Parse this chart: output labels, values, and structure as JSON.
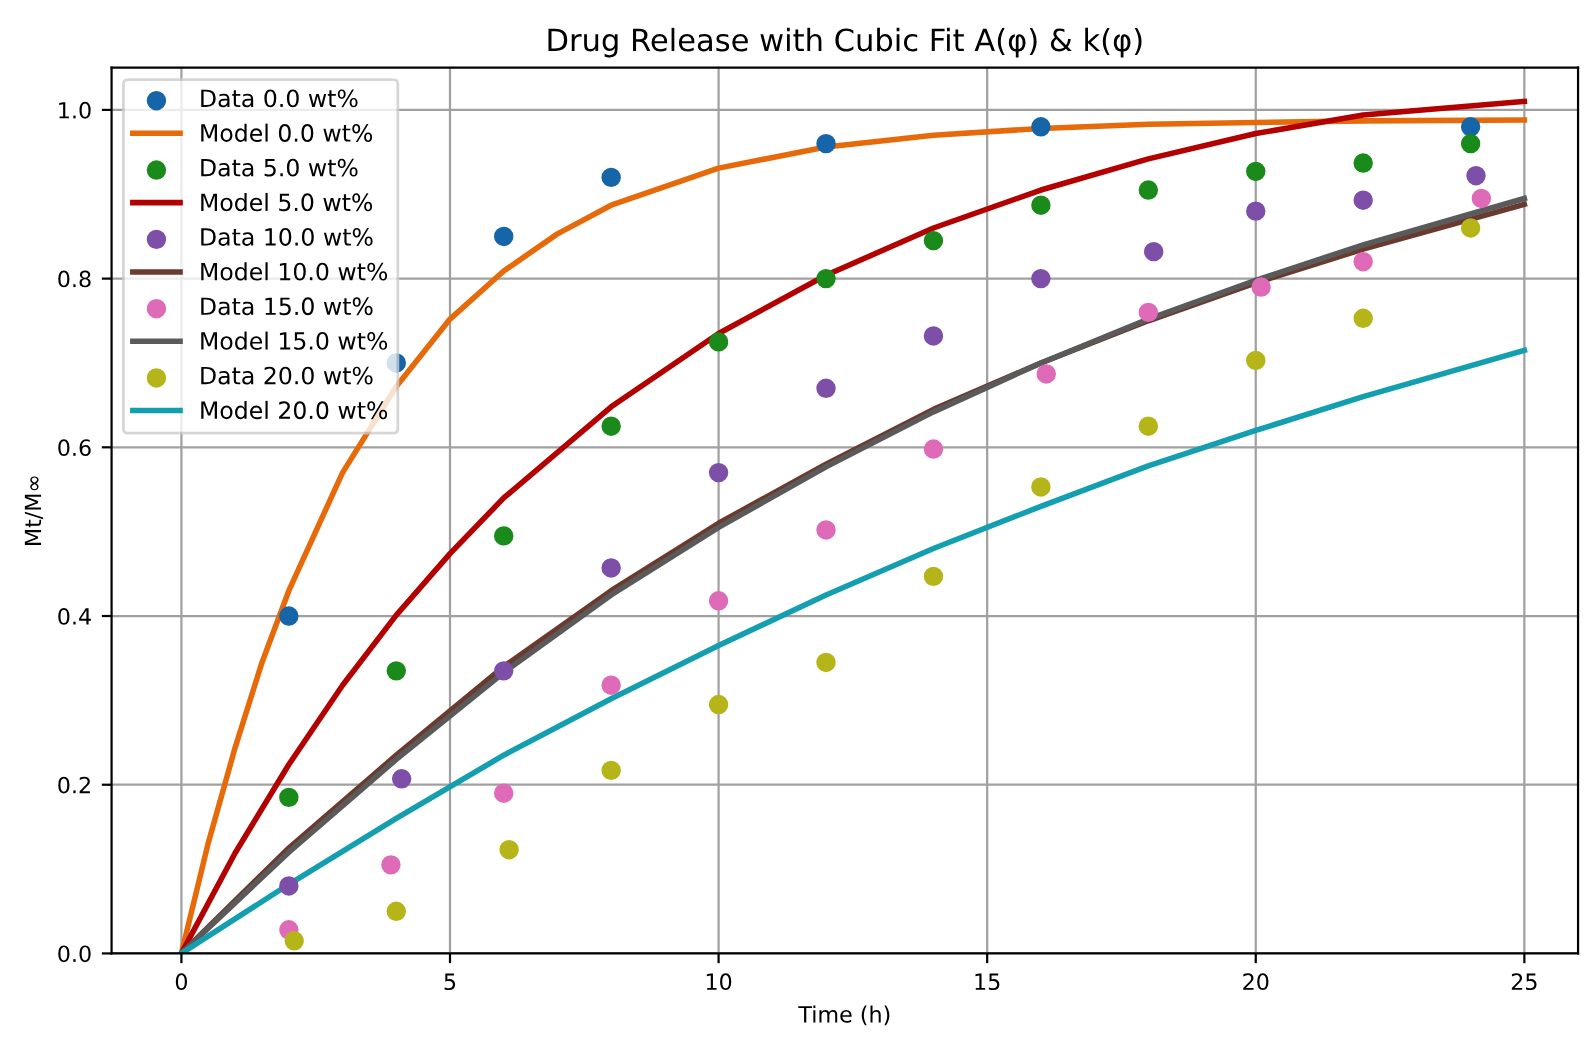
{
  "chart_data": {
    "type": "line",
    "title": "Drug Release with Cubic Fit A(φ) & k(φ)",
    "xlabel": "Time (h)",
    "ylabel": "Mt/M∞",
    "xlim": [
      -1.3,
      26.0
    ],
    "ylim": [
      0,
      1.05
    ],
    "xticks": [
      0,
      5,
      10,
      15,
      20,
      25
    ],
    "yticks": [
      {
        "value": 0,
        "label": "0.0"
      },
      {
        "value": 0.2,
        "label": "0.2"
      },
      {
        "value": 0.4,
        "label": "0.4"
      },
      {
        "value": 0.6,
        "label": "0.6"
      },
      {
        "value": 0.8,
        "label": "0.8"
      },
      {
        "value": 1.0,
        "label": "1.0"
      }
    ],
    "grid": true,
    "legend": "top left",
    "series": [
      {
        "name": "Data 0.0 wt%",
        "type": "scatter",
        "marker": "circle",
        "color": "#1565a8",
        "x": [
          2,
          4,
          6,
          8,
          12,
          16,
          24
        ],
        "values": [
          0.4,
          0.7,
          0.85,
          0.92,
          0.96,
          0.98,
          0.98
        ]
      },
      {
        "name": "Model 0.0 wt%",
        "color": "#e66a0a",
        "x": [
          0,
          0.5,
          1,
          1.5,
          2,
          3,
          4,
          5,
          6,
          7,
          8,
          10,
          12,
          14,
          16,
          18,
          20,
          22,
          25
        ],
        "values": [
          0,
          0.131,
          0.244,
          0.345,
          0.43,
          0.57,
          0.672,
          0.752,
          0.809,
          0.853,
          0.887,
          0.931,
          0.956,
          0.97,
          0.978,
          0.983,
          0.985,
          0.987,
          0.988
        ]
      },
      {
        "name": "Data 5.0 wt%",
        "type": "scatter",
        "marker": "circle",
        "color": "#1a8a1a",
        "x": [
          2,
          4,
          6,
          8,
          10,
          12,
          14,
          16,
          18,
          20,
          22,
          24
        ],
        "values": [
          0.185,
          0.335,
          0.495,
          0.625,
          0.725,
          0.8,
          0.845,
          0.887,
          0.905,
          0.927,
          0.937,
          0.96
        ]
      },
      {
        "name": "Model 5.0 wt%",
        "color": "#b30000",
        "x": [
          0,
          1,
          2,
          3,
          4,
          5,
          6,
          8,
          10,
          12,
          14,
          16,
          18,
          20,
          22,
          25
        ],
        "values": [
          0,
          0.119,
          0.224,
          0.318,
          0.401,
          0.474,
          0.54,
          0.648,
          0.735,
          0.804,
          0.86,
          0.905,
          0.942,
          0.972,
          0.994,
          1.01
        ]
      },
      {
        "name": "Data 10.0 wt%",
        "type": "scatter",
        "marker": "circle",
        "color": "#7e4fa8",
        "x": [
          2,
          4.1,
          6,
          8,
          10,
          12,
          14,
          16,
          18.1,
          20,
          22,
          24.1
        ],
        "values": [
          0.08,
          0.207,
          0.335,
          0.457,
          0.57,
          0.67,
          0.732,
          0.8,
          0.832,
          0.88,
          0.893,
          0.922
        ]
      },
      {
        "name": "Model 10.0 wt%",
        "color": "#6b3a2e",
        "x": [
          0,
          2,
          4,
          6,
          8,
          10,
          12,
          14,
          16,
          18,
          20,
          22,
          25
        ],
        "values": [
          0,
          0.125,
          0.235,
          0.34,
          0.43,
          0.51,
          0.58,
          0.645,
          0.7,
          0.75,
          0.795,
          0.835,
          0.888
        ]
      },
      {
        "name": "Data 15.0 wt%",
        "type": "scatter",
        "marker": "circle",
        "color": "#de6ab8",
        "x": [
          2,
          3.9,
          6,
          8,
          10,
          12,
          14,
          16.1,
          18,
          20.1,
          22,
          24.2
        ],
        "values": [
          0.028,
          0.105,
          0.19,
          0.318,
          0.418,
          0.502,
          0.598,
          0.687,
          0.76,
          0.79,
          0.82,
          0.895
        ]
      },
      {
        "name": "Model 15.0 wt%",
        "color": "#5a5a5a",
        "x": [
          0,
          2,
          4,
          6,
          8,
          10,
          12,
          14,
          16,
          18,
          20,
          22,
          25
        ],
        "values": [
          0,
          0.12,
          0.23,
          0.333,
          0.425,
          0.505,
          0.577,
          0.642,
          0.7,
          0.752,
          0.798,
          0.84,
          0.895
        ]
      },
      {
        "name": "Data 20.0 wt%",
        "type": "scatter",
        "marker": "circle",
        "color": "#b5b51a",
        "x": [
          2.1,
          4,
          6.1,
          8,
          10,
          12,
          14,
          16,
          18,
          20,
          22,
          24
        ],
        "values": [
          0.015,
          0.05,
          0.123,
          0.217,
          0.295,
          0.345,
          0.447,
          0.553,
          0.625,
          0.703,
          0.753,
          0.86
        ]
      },
      {
        "name": "Model 20.0 wt%",
        "color": "#149fb0",
        "x": [
          0,
          2,
          4,
          6,
          8,
          10,
          12,
          14,
          16,
          18,
          20,
          22,
          25
        ],
        "values": [
          0,
          0.082,
          0.16,
          0.235,
          0.302,
          0.365,
          0.425,
          0.48,
          0.53,
          0.578,
          0.62,
          0.66,
          0.715
        ]
      }
    ]
  }
}
